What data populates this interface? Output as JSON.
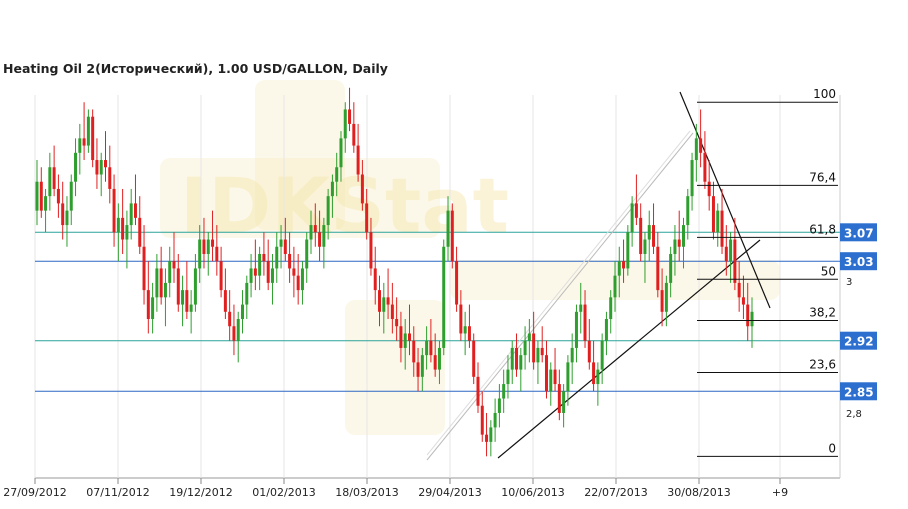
{
  "chart_data": {
    "type": "candlestick",
    "title": "Heating Oil 2(Исторический), 1.00 USD/GALLON, Daily",
    "x_ticks": [
      "27/09/2012",
      "07/11/2012",
      "19/12/2012",
      "01/02/2013",
      "18/03/2013",
      "29/04/2013",
      "10/06/2013",
      "22/07/2013",
      "30/08/2013",
      "+9"
    ],
    "ylim": [
      2.73,
      3.26
    ],
    "y_side_labels": [
      "3",
      "2,8"
    ],
    "y_side_values": [
      2.97,
      2.8
    ],
    "watermark": "IDKStat",
    "colors": {
      "up": "#2e9e2e",
      "down": "#e02020",
      "badge": "#2c6fcf",
      "line_teal": "#2aa39b",
      "line_blue": "#2d69c4"
    },
    "horizontal_levels": [
      {
        "value": 3.07,
        "label": "3.07",
        "color": "#2aa39b"
      },
      {
        "value": 3.03,
        "label": "3.03",
        "color": "#2d69c4"
      },
      {
        "value": 2.92,
        "label": "2.92",
        "color": "#2aa39b"
      },
      {
        "value": 2.85,
        "label": "2.85",
        "color": "#2d69c4"
      }
    ],
    "fibonacci": {
      "high": 3.25,
      "low": 2.76,
      "levels": [
        {
          "label": "100",
          "value": 3.25
        },
        {
          "label": "76,4",
          "value": 3.135
        },
        {
          "label": "61,8",
          "value": 3.063
        },
        {
          "label": "50",
          "value": 3.005
        },
        {
          "label": "38,2",
          "value": 2.948
        },
        {
          "label": "23,6",
          "value": 2.876
        },
        {
          "label": "0",
          "value": 2.76
        }
      ]
    },
    "candles_ohlc": [
      [
        3.1,
        3.17,
        3.08,
        3.14
      ],
      [
        3.14,
        3.16,
        3.09,
        3.1
      ],
      [
        3.1,
        3.13,
        3.07,
        3.12
      ],
      [
        3.12,
        3.18,
        3.1,
        3.16
      ],
      [
        3.16,
        3.19,
        3.12,
        3.13
      ],
      [
        3.13,
        3.15,
        3.09,
        3.11
      ],
      [
        3.11,
        3.14,
        3.06,
        3.08
      ],
      [
        3.08,
        3.12,
        3.05,
        3.1
      ],
      [
        3.1,
        3.15,
        3.08,
        3.14
      ],
      [
        3.14,
        3.2,
        3.12,
        3.18
      ],
      [
        3.18,
        3.22,
        3.15,
        3.2
      ],
      [
        3.2,
        3.25,
        3.17,
        3.19
      ],
      [
        3.19,
        3.24,
        3.18,
        3.23
      ],
      [
        3.23,
        3.24,
        3.16,
        3.17
      ],
      [
        3.17,
        3.2,
        3.13,
        3.15
      ],
      [
        3.15,
        3.18,
        3.12,
        3.17
      ],
      [
        3.17,
        3.21,
        3.14,
        3.16
      ],
      [
        3.16,
        3.19,
        3.11,
        3.13
      ],
      [
        3.13,
        3.15,
        3.05,
        3.07
      ],
      [
        3.07,
        3.11,
        3.03,
        3.09
      ],
      [
        3.09,
        3.13,
        3.04,
        3.06
      ],
      [
        3.06,
        3.1,
        3.02,
        3.08
      ],
      [
        3.08,
        3.13,
        3.06,
        3.11
      ],
      [
        3.11,
        3.15,
        3.08,
        3.09
      ],
      [
        3.09,
        3.12,
        3.04,
        3.05
      ],
      [
        3.05,
        3.08,
        2.97,
        2.99
      ],
      [
        2.99,
        3.03,
        2.93,
        2.95
      ],
      [
        2.95,
        3.0,
        2.93,
        2.98
      ],
      [
        2.98,
        3.04,
        2.96,
        3.02
      ],
      [
        3.02,
        3.05,
        2.97,
        2.98
      ],
      [
        2.98,
        3.02,
        2.94,
        3.0
      ],
      [
        3.0,
        3.05,
        2.98,
        3.03
      ],
      [
        3.03,
        3.07,
        3.0,
        3.02
      ],
      [
        3.02,
        3.04,
        2.96,
        2.97
      ],
      [
        2.97,
        3.01,
        2.94,
        2.99
      ],
      [
        2.99,
        3.03,
        2.95,
        2.96
      ],
      [
        2.96,
        2.99,
        2.93,
        2.97
      ],
      [
        2.97,
        3.04,
        2.96,
        3.02
      ],
      [
        3.02,
        3.08,
        3.0,
        3.06
      ],
      [
        3.06,
        3.09,
        3.02,
        3.04
      ],
      [
        3.04,
        3.07,
        3.01,
        3.06
      ],
      [
        3.06,
        3.1,
        3.03,
        3.05
      ],
      [
        3.05,
        3.08,
        3.01,
        3.03
      ],
      [
        3.03,
        3.05,
        2.98,
        2.99
      ],
      [
        2.99,
        3.02,
        2.95,
        2.96
      ],
      [
        2.96,
        2.99,
        2.92,
        2.94
      ],
      [
        2.94,
        2.97,
        2.9,
        2.92
      ],
      [
        2.92,
        2.96,
        2.89,
        2.95
      ],
      [
        2.95,
        2.99,
        2.93,
        2.97
      ],
      [
        2.97,
        3.01,
        2.95,
        3.0
      ],
      [
        3.0,
        3.04,
        2.98,
        3.02
      ],
      [
        3.02,
        3.06,
        2.99,
        3.01
      ],
      [
        3.01,
        3.05,
        2.99,
        3.04
      ],
      [
        3.04,
        3.07,
        3.01,
        3.03
      ],
      [
        3.03,
        3.06,
        2.99,
        3.0
      ],
      [
        3.0,
        3.04,
        2.97,
        3.02
      ],
      [
        3.02,
        3.07,
        3.0,
        3.05
      ],
      [
        3.05,
        3.08,
        3.02,
        3.06
      ],
      [
        3.06,
        3.09,
        3.03,
        3.04
      ],
      [
        3.04,
        3.07,
        3.0,
        3.02
      ],
      [
        3.02,
        3.05,
        2.98,
        3.01
      ],
      [
        3.01,
        3.04,
        2.97,
        2.99
      ],
      [
        2.99,
        3.03,
        2.97,
        3.02
      ],
      [
        3.02,
        3.07,
        3.0,
        3.06
      ],
      [
        3.06,
        3.1,
        3.04,
        3.08
      ],
      [
        3.08,
        3.11,
        3.05,
        3.07
      ],
      [
        3.07,
        3.1,
        3.03,
        3.05
      ],
      [
        3.05,
        3.09,
        3.02,
        3.08
      ],
      [
        3.08,
        3.13,
        3.06,
        3.12
      ],
      [
        3.12,
        3.15,
        3.09,
        3.14
      ],
      [
        3.14,
        3.18,
        3.12,
        3.16
      ],
      [
        3.16,
        3.21,
        3.14,
        3.2
      ],
      [
        3.2,
        3.25,
        3.18,
        3.24
      ],
      [
        3.24,
        3.27,
        3.21,
        3.22
      ],
      [
        3.22,
        3.25,
        3.18,
        3.19
      ],
      [
        3.19,
        3.22,
        3.14,
        3.15
      ],
      [
        3.15,
        3.17,
        3.1,
        3.11
      ],
      [
        3.11,
        3.13,
        3.06,
        3.07
      ],
      [
        3.07,
        3.09,
        3.01,
        3.02
      ],
      [
        3.02,
        3.05,
        2.97,
        2.99
      ],
      [
        2.99,
        3.01,
        2.94,
        2.96
      ],
      [
        2.96,
        3.0,
        2.93,
        2.98
      ],
      [
        2.98,
        3.02,
        2.95,
        2.97
      ],
      [
        2.97,
        3.0,
        2.93,
        2.95
      ],
      [
        2.95,
        2.98,
        2.92,
        2.94
      ],
      [
        2.94,
        2.96,
        2.89,
        2.91
      ],
      [
        2.91,
        2.95,
        2.88,
        2.93
      ],
      [
        2.93,
        2.97,
        2.9,
        2.92
      ],
      [
        2.92,
        2.94,
        2.87,
        2.89
      ],
      [
        2.89,
        2.91,
        2.85,
        2.87
      ],
      [
        2.87,
        2.91,
        2.85,
        2.9
      ],
      [
        2.9,
        2.94,
        2.88,
        2.92
      ],
      [
        2.92,
        2.95,
        2.89,
        2.9
      ],
      [
        2.9,
        2.93,
        2.87,
        2.88
      ],
      [
        2.88,
        2.92,
        2.86,
        2.91
      ],
      [
        2.91,
        3.06,
        2.9,
        3.05
      ],
      [
        3.05,
        3.12,
        3.03,
        3.1
      ],
      [
        3.1,
        3.11,
        3.02,
        3.03
      ],
      [
        3.03,
        3.05,
        2.96,
        2.97
      ],
      [
        2.97,
        2.99,
        2.92,
        2.93
      ],
      [
        2.93,
        2.96,
        2.9,
        2.94
      ],
      [
        2.94,
        2.97,
        2.91,
        2.92
      ],
      [
        2.92,
        2.93,
        2.86,
        2.87
      ],
      [
        2.87,
        2.89,
        2.82,
        2.83
      ],
      [
        2.83,
        2.85,
        2.78,
        2.79
      ],
      [
        2.79,
        2.82,
        2.76,
        2.78
      ],
      [
        2.78,
        2.81,
        2.76,
        2.8
      ],
      [
        2.8,
        2.84,
        2.78,
        2.82
      ],
      [
        2.82,
        2.86,
        2.8,
        2.84
      ],
      [
        2.84,
        2.88,
        2.82,
        2.86
      ],
      [
        2.86,
        2.9,
        2.84,
        2.88
      ],
      [
        2.88,
        2.92,
        2.86,
        2.91
      ],
      [
        2.91,
        2.93,
        2.87,
        2.88
      ],
      [
        2.88,
        2.91,
        2.85,
        2.9
      ],
      [
        2.9,
        2.94,
        2.88,
        2.92
      ],
      [
        2.92,
        2.95,
        2.89,
        2.93
      ],
      [
        2.93,
        2.96,
        2.88,
        2.89
      ],
      [
        2.89,
        2.92,
        2.86,
        2.91
      ],
      [
        2.91,
        2.94,
        2.89,
        2.9
      ],
      [
        2.9,
        2.92,
        2.84,
        2.85
      ],
      [
        2.85,
        2.89,
        2.83,
        2.88
      ],
      [
        2.88,
        2.91,
        2.85,
        2.86
      ],
      [
        2.86,
        2.88,
        2.81,
        2.82
      ],
      [
        2.82,
        2.86,
        2.8,
        2.85
      ],
      [
        2.85,
        2.9,
        2.83,
        2.89
      ],
      [
        2.89,
        2.93,
        2.86,
        2.91
      ],
      [
        2.91,
        2.97,
        2.89,
        2.96
      ],
      [
        2.96,
        3.0,
        2.93,
        2.97
      ],
      [
        2.97,
        2.99,
        2.91,
        2.92
      ],
      [
        2.92,
        2.95,
        2.88,
        2.89
      ],
      [
        2.89,
        2.92,
        2.85,
        2.86
      ],
      [
        2.86,
        2.89,
        2.83,
        2.88
      ],
      [
        2.88,
        2.93,
        2.86,
        2.92
      ],
      [
        2.92,
        2.96,
        2.9,
        2.95
      ],
      [
        2.95,
        2.99,
        2.93,
        2.98
      ],
      [
        2.98,
        3.03,
        2.96,
        3.01
      ],
      [
        3.01,
        3.05,
        2.98,
        3.03
      ],
      [
        3.03,
        3.06,
        3.0,
        3.02
      ],
      [
        3.02,
        3.08,
        3.01,
        3.07
      ],
      [
        3.07,
        3.12,
        3.05,
        3.11
      ],
      [
        3.11,
        3.15,
        3.08,
        3.09
      ],
      [
        3.09,
        3.11,
        3.03,
        3.04
      ],
      [
        3.04,
        3.07,
        3.0,
        3.06
      ],
      [
        3.06,
        3.1,
        3.03,
        3.08
      ],
      [
        3.08,
        3.11,
        3.04,
        3.05
      ],
      [
        3.05,
        3.07,
        2.98,
        2.99
      ],
      [
        2.99,
        3.02,
        2.94,
        2.96
      ],
      [
        2.96,
        3.01,
        2.94,
        3.0
      ],
      [
        3.0,
        3.05,
        2.98,
        3.04
      ],
      [
        3.04,
        3.08,
        3.01,
        3.06
      ],
      [
        3.06,
        3.1,
        3.03,
        3.05
      ],
      [
        3.05,
        3.09,
        3.02,
        3.08
      ],
      [
        3.08,
        3.13,
        3.06,
        3.12
      ],
      [
        3.12,
        3.18,
        3.1,
        3.17
      ],
      [
        3.17,
        3.22,
        3.14,
        3.2
      ],
      [
        3.2,
        3.24,
        3.16,
        3.18
      ],
      [
        3.18,
        3.21,
        3.13,
        3.14
      ],
      [
        3.14,
        3.17,
        3.1,
        3.12
      ],
      [
        3.12,
        3.14,
        3.06,
        3.07
      ],
      [
        3.07,
        3.11,
        3.05,
        3.1
      ],
      [
        3.1,
        3.13,
        3.04,
        3.05
      ],
      [
        3.05,
        3.08,
        3.01,
        3.03
      ],
      [
        3.03,
        3.07,
        3.0,
        3.06
      ],
      [
        3.06,
        3.09,
        2.99,
        3.0
      ],
      [
        3.0,
        3.03,
        2.96,
        2.98
      ],
      [
        2.98,
        3.01,
        2.95,
        2.97
      ],
      [
        2.97,
        3.0,
        2.92,
        2.94
      ],
      [
        2.94,
        2.98,
        2.91,
        2.96
      ]
    ]
  }
}
